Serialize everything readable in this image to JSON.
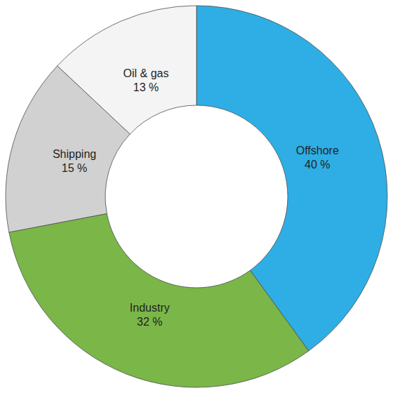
{
  "chart_data": {
    "type": "pie",
    "categories": [
      "Offshore",
      "Industry",
      "Shipping",
      "Oil & gas"
    ],
    "values": [
      40,
      32,
      15,
      13
    ],
    "value_labels": [
      "40 %",
      "32 %",
      "15 %",
      "13 %"
    ],
    "colors": [
      "#2eaee5",
      "#7ab648",
      "#d1d1d1",
      "#f4f4f4"
    ],
    "data_labels": true
  }
}
